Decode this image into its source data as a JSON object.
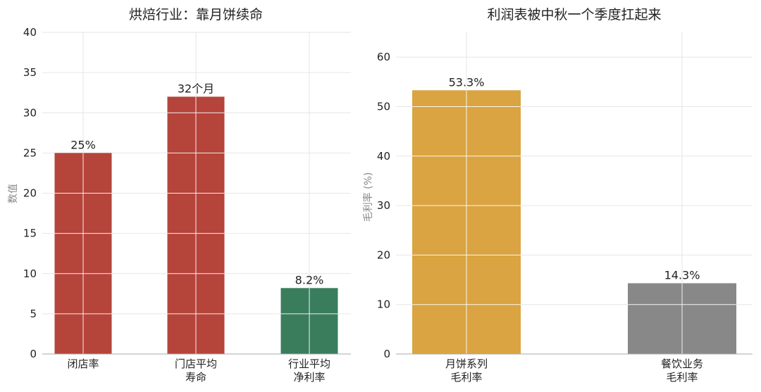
{
  "chart_data": [
    {
      "type": "bar",
      "title": "烘焙行业：靠月饼续命",
      "ylabel": "数值",
      "ylim": [
        0,
        40
      ],
      "yticks": [
        0,
        5,
        10,
        15,
        20,
        25,
        30,
        35,
        40
      ],
      "grid": true,
      "categories": [
        [
          "闭店率"
        ],
        [
          "门店平均",
          "寿命"
        ],
        [
          "行业平均",
          "净利率"
        ]
      ],
      "values": [
        25,
        32,
        8.2
      ],
      "data_labels": [
        "25%",
        "32个月",
        "8.2%"
      ],
      "colors": [
        "#b5443b",
        "#b5443b",
        "#3a7d5c"
      ]
    },
    {
      "type": "bar",
      "title": "利润表被中秋一个季度扛起来",
      "ylabel": "毛利率 (%)",
      "ylim": [
        0,
        65
      ],
      "yticks": [
        0,
        10,
        20,
        30,
        40,
        50,
        60
      ],
      "grid": true,
      "categories": [
        [
          "月饼系列",
          "毛利率"
        ],
        [
          "餐饮业务",
          "毛利率"
        ]
      ],
      "values": [
        53.3,
        14.3
      ],
      "data_labels": [
        "53.3%",
        "14.3%"
      ],
      "colors": [
        "#d9a441",
        "#888888"
      ]
    }
  ]
}
